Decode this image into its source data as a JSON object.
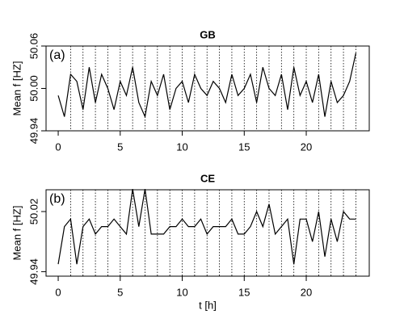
{
  "chart_data": [
    {
      "type": "line",
      "title": "GB",
      "annotation": "(a)",
      "y_label": "Mean f [HZ]",
      "x": [
        0,
        0.5,
        1,
        1.5,
        2,
        2.5,
        3,
        3.5,
        4,
        4.5,
        5,
        5.5,
        6,
        6.5,
        7,
        7.5,
        8,
        8.5,
        9,
        9.5,
        10,
        10.5,
        11,
        11.5,
        12,
        12.5,
        13,
        13.5,
        14,
        14.5,
        15,
        15.5,
        16,
        16.5,
        17,
        17.5,
        18,
        18.5,
        19,
        19.5,
        20,
        20.5,
        21,
        21.5,
        22,
        22.5,
        23,
        23.5,
        24
      ],
      "series": [
        {
          "color": "#000000",
          "values": [
            49.99,
            49.96,
            50.02,
            50.01,
            49.97,
            50.03,
            49.98,
            50.02,
            50.0,
            49.97,
            50.01,
            49.99,
            50.03,
            49.98,
            49.96,
            50.01,
            49.99,
            50.02,
            49.97,
            50.0,
            50.01,
            49.98,
            50.02,
            50.0,
            49.99,
            50.01,
            50.0,
            49.98,
            50.02,
            49.99,
            50.0,
            50.02,
            49.98,
            50.03,
            50.0,
            49.99,
            50.02,
            49.97,
            50.03,
            49.99,
            50.01,
            49.98,
            50.02,
            49.96,
            50.01,
            49.98,
            49.99,
            50.01,
            50.05
          ]
        }
      ],
      "xlim": [
        -0.98,
        25.08
      ],
      "xticks": [
        0,
        5,
        10,
        15,
        20
      ],
      "ylim": [
        49.94,
        50.06
      ],
      "yticks": [
        49.94,
        {
          "value": 50,
          "label": "50.00"
        },
        50.06
      ],
      "vlines": [
        1,
        2,
        3,
        4,
        5,
        6,
        7,
        8,
        9,
        10,
        11,
        12,
        13,
        14,
        15,
        16,
        17,
        18,
        19,
        20,
        21,
        22,
        23,
        24
      ]
    },
    {
      "type": "line",
      "title": "CE",
      "annotation": "(b)",
      "y_label": "Mean f [HZ]",
      "x_label": "t [h]",
      "x": [
        0,
        0.5,
        1,
        1.5,
        2,
        2.5,
        3,
        3.5,
        4,
        4.5,
        5,
        5.5,
        6,
        6.5,
        7,
        7.5,
        8,
        8.5,
        9,
        9.5,
        10,
        10.5,
        11,
        11.5,
        12,
        12.5,
        13,
        13.5,
        14,
        14.5,
        15,
        15.5,
        16,
        16.5,
        17,
        17.5,
        18,
        18.5,
        19,
        19.5,
        20,
        20.5,
        21,
        21.5,
        22,
        22.5,
        23,
        23.5,
        24
      ],
      "series": [
        {
          "color": "#000000",
          "values": [
            49.95,
            50.0,
            50.01,
            49.95,
            50.0,
            50.01,
            49.99,
            50.0,
            50.0,
            50.01,
            50.0,
            49.99,
            50.05,
            50.0,
            50.05,
            49.99,
            49.99,
            49.99,
            50.0,
            50.0,
            50.01,
            50.0,
            50.0,
            50.01,
            49.99,
            50.0,
            50.0,
            50.0,
            50.01,
            49.99,
            49.99,
            50.0,
            50.02,
            50.0,
            50.03,
            49.99,
            50.0,
            50.01,
            49.95,
            50.01,
            50.01,
            49.98,
            50.02,
            49.96,
            50.01,
            49.98,
            50.02,
            50.01,
            50.01
          ]
        }
      ],
      "xlim": [
        -0.98,
        25.08
      ],
      "xticks": [
        0,
        5,
        10,
        15,
        20
      ],
      "ylim": [
        49.934,
        50.049
      ],
      "yticks": [
        49.94,
        50.02
      ],
      "vlines": [
        1,
        2,
        3,
        4,
        5,
        6,
        7,
        8,
        9,
        10,
        11,
        12,
        13,
        14,
        15,
        16,
        17,
        18,
        19,
        20,
        21,
        22,
        23,
        24
      ]
    }
  ]
}
